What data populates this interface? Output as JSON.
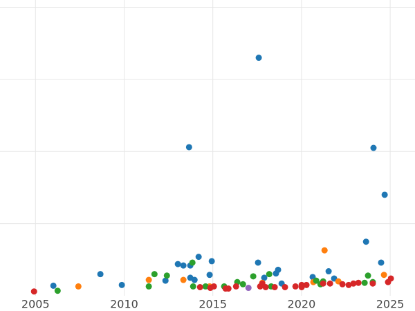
{
  "chart_data": {
    "type": "scatter",
    "grid": true,
    "xlim": [
      2003,
      2026.4
    ],
    "xticks": [
      2005,
      2010,
      2015,
      2020,
      2025
    ],
    "ylim": [
      0,
      4.1
    ],
    "yticks": [
      1,
      2,
      3,
      4
    ],
    "series": [
      {
        "color": "#1f77b4",
        "x": [
          2017.59,
          2013.66,
          2024.06,
          2024.69,
          2023.64,
          2006.01,
          2008.66,
          2009.87,
          2012.33,
          2013.03,
          2013.34,
          2013.73,
          2014.2,
          2013.73,
          2013.97,
          2014.82,
          2014.94,
          2017.55,
          2017.9,
          2018.56,
          2018.68,
          2018.88,
          2020.63,
          2021.53,
          2021.84,
          2024.49
        ],
        "values": [
          3.3,
          2.06,
          2.05,
          1.4,
          0.75,
          0.14,
          0.3,
          0.15,
          0.21,
          0.44,
          0.42,
          0.42,
          0.54,
          0.25,
          0.22,
          0.29,
          0.48,
          0.46,
          0.25,
          0.31,
          0.36,
          0.17,
          0.26,
          0.34,
          0.24,
          0.46
        ]
      },
      {
        "color": "#ff7f0e",
        "x": [
          2021.3,
          2007.42,
          2011.39,
          2013.34,
          2014.82,
          2017.79,
          2020.67,
          2022.08,
          2024.65
        ],
        "values": [
          0.63,
          0.13,
          0.22,
          0.22,
          0.13,
          0.18,
          0.19,
          0.2,
          0.29
        ]
      },
      {
        "color": "#2ca02c",
        "x": [
          2006.25,
          2011.39,
          2011.71,
          2012.41,
          2013.85,
          2013.89,
          2014.59,
          2015.64,
          2016.38,
          2016.7,
          2017.28,
          2018.18,
          2018.29,
          2020.83,
          2021.07,
          2021.22,
          2023.75,
          2023.56,
          2024.02
        ],
        "values": [
          0.07,
          0.13,
          0.3,
          0.28,
          0.46,
          0.13,
          0.13,
          0.13,
          0.19,
          0.16,
          0.27,
          0.3,
          0.13,
          0.21,
          0.16,
          0.2,
          0.28,
          0.18,
          0.19
        ]
      },
      {
        "color": "#d62728",
        "x": [
          2004.92,
          2014.28,
          2014.86,
          2015.06,
          2015.72,
          2015.88,
          2016.31,
          2017.67,
          2017.79,
          2017.98,
          2018.49,
          2019.07,
          2019.66,
          2020.01,
          2020.01,
          2020.28,
          2021.22,
          2021.61,
          2022.31,
          2022.66,
          2022.93,
          2023.21,
          2024.02,
          2024.88,
          2025.04
        ],
        "values": [
          0.06,
          0.12,
          0.11,
          0.13,
          0.1,
          0.1,
          0.13,
          0.13,
          0.17,
          0.12,
          0.12,
          0.12,
          0.13,
          0.15,
          0.12,
          0.15,
          0.17,
          0.17,
          0.16,
          0.15,
          0.17,
          0.18,
          0.17,
          0.19,
          0.24
        ]
      },
      {
        "color": "#9467bd",
        "x": [
          2017.01
        ],
        "values": [
          0.11
        ]
      }
    ]
  }
}
